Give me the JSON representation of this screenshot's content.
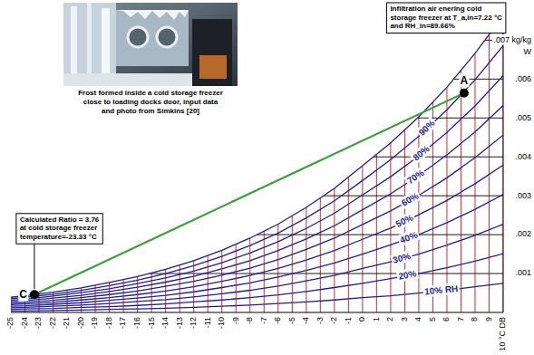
{
  "chart_data": {
    "type": "line",
    "x": [
      -25,
      -24,
      -22,
      -20,
      -18,
      -16,
      -14,
      -12,
      -10,
      -8,
      -6,
      -4,
      -2,
      0,
      2,
      4,
      6,
      8,
      10
    ],
    "xlim": [
      -25,
      10
    ],
    "xticks": [
      -25,
      -24,
      -23,
      -22,
      -21,
      -20,
      -19,
      -18,
      -17,
      -16,
      -15,
      -14,
      -13,
      -12,
      -11,
      -10,
      -9,
      -8,
      -7,
      -6,
      -5,
      -4,
      -3,
      -2,
      -1,
      0,
      1,
      2,
      3,
      4,
      5,
      6,
      7,
      8,
      9,
      {
        "value": 10,
        "label": "10 °C DB"
      }
    ],
    "ylim": [
      0,
      0.0078
    ],
    "yticks": [
      {
        "value": 0.001,
        "label": ".001"
      },
      {
        "value": 0.002,
        "label": ".002"
      },
      {
        "value": 0.003,
        "label": ".003"
      },
      {
        "value": 0.004,
        "label": ".004"
      },
      {
        "value": 0.005,
        "label": ".005"
      },
      {
        "value": 0.006,
        "label": ".006"
      },
      {
        "value": 0.007,
        "label": ".007 kg/kg"
      }
    ],
    "y_label": "W",
    "grid": true,
    "color": "#1f1f8f",
    "series": [
      {
        "values": [
          0.00039,
          0.00043,
          0.00052,
          0.00063,
          0.00077,
          0.00092,
          0.00111,
          0.00133,
          0.0016,
          0.00191,
          0.00227,
          0.0027,
          0.00319,
          0.00377,
          0.00436,
          0.00503,
          0.00579,
          0.00666,
          0.00763
        ]
      },
      {
        "name": "90%",
        "values": [
          0.00035,
          0.00039,
          0.00047,
          0.00057,
          0.00069,
          0.00083,
          0.001,
          0.0012,
          0.00144,
          0.00172,
          0.00204,
          0.00243,
          0.00287,
          0.00339,
          0.00393,
          0.00453,
          0.00521,
          0.00598,
          0.00686
        ]
      },
      {
        "name": "80%",
        "values": [
          0.00031,
          0.00034,
          0.00042,
          0.00051,
          0.00061,
          0.00074,
          0.00089,
          0.00106,
          0.00128,
          0.00153,
          0.00182,
          0.00216,
          0.00255,
          0.00302,
          0.00349,
          0.00402,
          0.00463,
          0.00531,
          0.00609
        ]
      },
      {
        "name": "70%",
        "values": [
          0.00027,
          0.0003,
          0.00037,
          0.00044,
          0.00054,
          0.00065,
          0.00078,
          0.00093,
          0.00112,
          0.00133,
          0.00159,
          0.00189,
          0.00223,
          0.00264,
          0.00305,
          0.00352,
          0.00405,
          0.00464,
          0.00532
        ]
      },
      {
        "name": "60%",
        "values": [
          0.00023,
          0.00026,
          0.00031,
          0.00038,
          0.00046,
          0.00055,
          0.00067,
          0.0008,
          0.00096,
          0.00114,
          0.00136,
          0.00162,
          0.00191,
          0.00226,
          0.00261,
          0.00301,
          0.00346,
          0.00398,
          0.00456
        ]
      },
      {
        "name": "50%",
        "values": [
          0.0002,
          0.00022,
          0.00026,
          0.00032,
          0.00038,
          0.00046,
          0.00055,
          0.00066,
          0.0008,
          0.00095,
          0.00113,
          0.00135,
          0.00159,
          0.00188,
          0.00217,
          0.00251,
          0.00288,
          0.00331,
          0.00379
        ]
      },
      {
        "name": "40%",
        "values": [
          0.00016,
          0.00017,
          0.00021,
          0.00025,
          0.00031,
          0.00037,
          0.00044,
          0.00053,
          0.00064,
          0.00076,
          0.00091,
          0.00108,
          0.00127,
          0.0015,
          0.00174,
          0.002,
          0.00231,
          0.00265,
          0.00303
        ]
      },
      {
        "name": "30%",
        "values": [
          0.00012,
          0.00013,
          0.00016,
          0.00019,
          0.00023,
          0.00028,
          0.00033,
          0.0004,
          0.00048,
          0.00057,
          0.00068,
          0.00081,
          0.00095,
          0.00113,
          0.0013,
          0.0015,
          0.00173,
          0.00198,
          0.00227
        ]
      },
      {
        "name": "20%",
        "values": [
          8e-05,
          9e-05,
          0.0001,
          0.00013,
          0.00015,
          0.00018,
          0.00022,
          0.00027,
          0.00032,
          0.00038,
          0.00045,
          0.00054,
          0.00064,
          0.00075,
          0.00087,
          0.001,
          0.00115,
          0.00132,
          0.00151
        ]
      },
      {
        "name": "10% RH",
        "values": [
          4e-05,
          4e-05,
          5e-05,
          6e-05,
          8e-05,
          9e-05,
          0.00011,
          0.00013,
          0.00016,
          0.00019,
          0.00023,
          0.00027,
          0.00032,
          0.00038,
          0.00043,
          0.0005,
          0.00057,
          0.00066,
          0.00075
        ]
      }
    ],
    "process": {
      "color": "#3aa23a",
      "x": [
        -23.33,
        7.22
      ],
      "values": [
        0.00046,
        0.00564
      ],
      "labels": [
        "C",
        "A"
      ],
      "annotations": [
        [
          "Calculated Ratio = 3.76",
          "at cold storage freezer",
          "temperature=-23.33 °C"
        ],
        [
          "Infiltration air enering cold",
          "storage freezer at T_a,in=7.22 °C",
          "and RH_in=89.66%"
        ]
      ]
    },
    "photo_caption": [
      "Frost formed inside a cold storage freezer",
      "close to loading docks door, input data",
      "and photo from Simkins [20]"
    ]
  }
}
